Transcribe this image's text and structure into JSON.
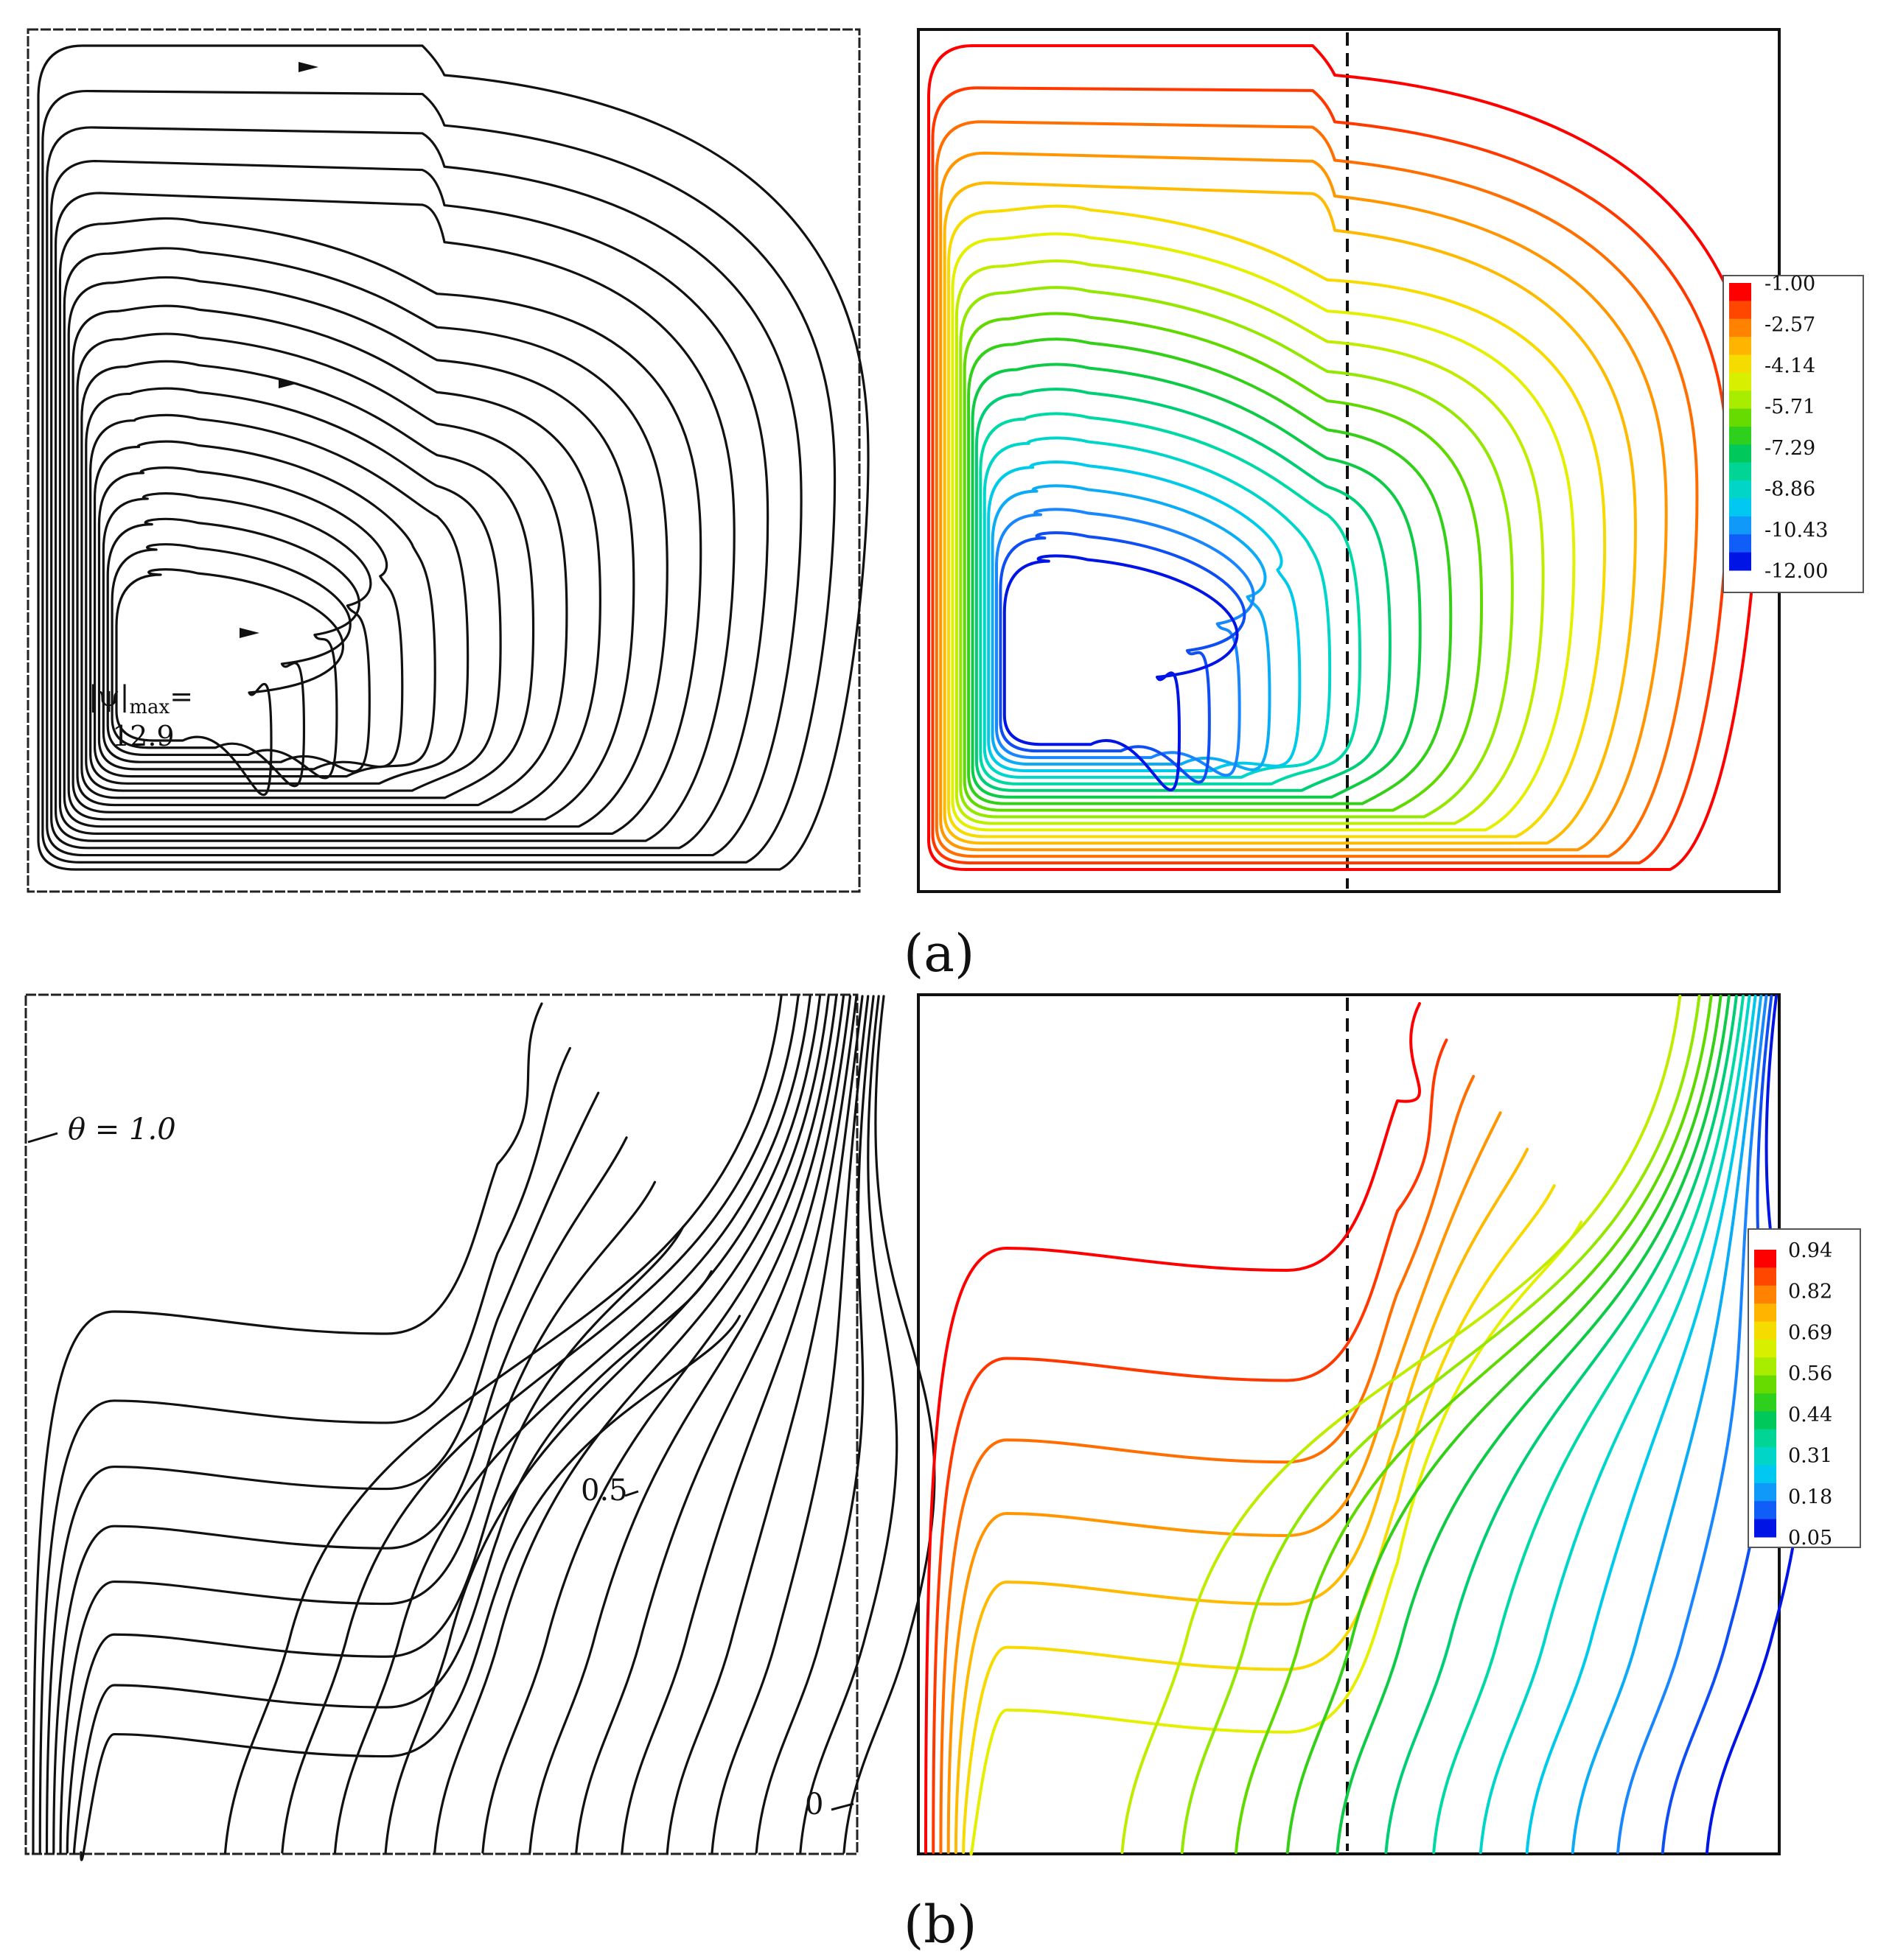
{
  "figure": {
    "caption_a": "(a)",
    "caption_b": "(b)",
    "panel_a_left": {
      "annotation_psi_lhs": "|ψ|",
      "annotation_psi_sub": "max",
      "annotation_psi_eq": "=",
      "annotation_psi_value": "12.9"
    },
    "panel_b_left": {
      "annotation_theta_top": "θ = 1.0",
      "annotation_mid": "0.5",
      "annotation_zero": "0"
    },
    "legend_a": {
      "values": [
        "-1.00",
        "-2.57",
        "-4.14",
        "-5.71",
        "-7.29",
        "-8.86",
        "-10.43",
        "-12.00"
      ]
    },
    "legend_b": {
      "values": [
        "0.94",
        "0.82",
        "0.69",
        "0.56",
        "0.44",
        "0.31",
        "0.18",
        "0.05"
      ]
    },
    "colormap": [
      "#ff0000",
      "#ff6a00",
      "#ffb400",
      "#f0f000",
      "#a8ec00",
      "#46d200",
      "#00c85a",
      "#00dcb4",
      "#00c8f0",
      "#1a82ff",
      "#0014e6"
    ]
  }
}
